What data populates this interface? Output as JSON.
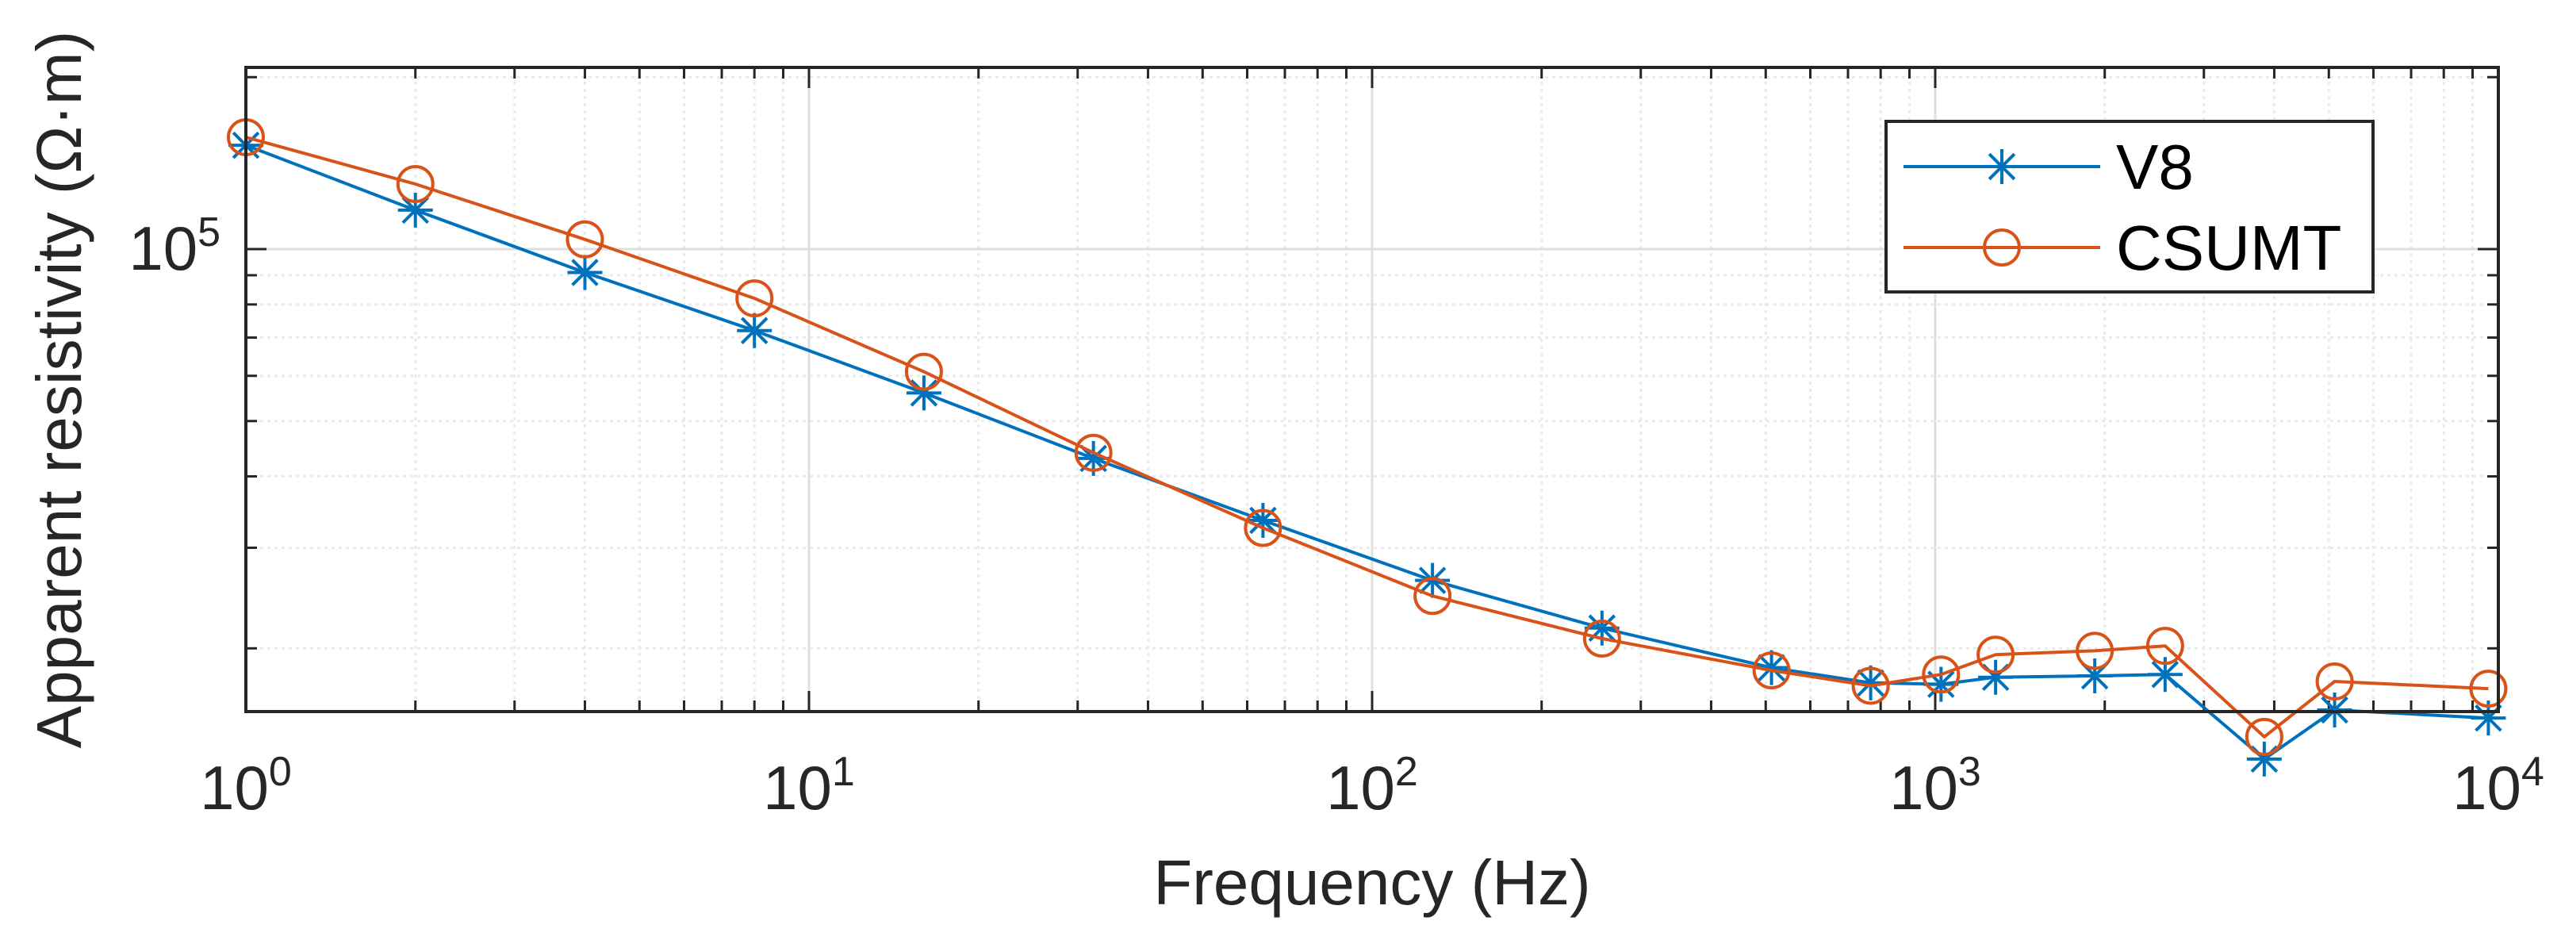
{
  "chart_data": {
    "type": "line",
    "title": "",
    "xlabel": "Frequency (Hz)",
    "ylabel": "Apparent resistivity (Ω·m)",
    "xscale": "log",
    "yscale": "log",
    "xlim": [
      1,
      10000
    ],
    "ylim": [
      15500,
      208000
    ],
    "grid": true,
    "minor_grid": true,
    "legend_position": "top-right",
    "x_ticks": [
      {
        "base": "10",
        "exp": "0",
        "value": 1
      },
      {
        "base": "10",
        "exp": "1",
        "value": 10
      },
      {
        "base": "10",
        "exp": "2",
        "value": 100
      },
      {
        "base": "10",
        "exp": "3",
        "value": 1000
      },
      {
        "base": "10",
        "exp": "4",
        "value": 10000
      }
    ],
    "y_ticks": [
      {
        "base": "10",
        "exp": "5",
        "value": 100000
      }
    ],
    "series": [
      {
        "name": "V8",
        "color": "#0072BD",
        "marker": "asterisk",
        "x": [
          1,
          2,
          4,
          8,
          16,
          32,
          64,
          128,
          256,
          512,
          768,
          1024,
          1280,
          1920,
          2560,
          3840,
          5120,
          9600
        ],
        "y": [
          152000,
          117000,
          91000,
          72000,
          56000,
          43000,
          33500,
          26300,
          21700,
          18500,
          17400,
          17300,
          17800,
          17900,
          18000,
          12800,
          15600,
          15100
        ]
      },
      {
        "name": "CSUMT",
        "color": "#D95319",
        "marker": "circle",
        "x": [
          1,
          2,
          4,
          8,
          16,
          32,
          64,
          128,
          256,
          512,
          768,
          1024,
          1280,
          1920,
          2560,
          3840,
          5120,
          9600
        ],
        "y": [
          157000,
          130000,
          104000,
          82000,
          61000,
          44000,
          32500,
          24700,
          20800,
          18300,
          17200,
          18000,
          19500,
          19800,
          20200,
          14000,
          17500,
          17000
        ]
      }
    ]
  },
  "colors": {
    "axis": "#262626",
    "grid": "#dfdfdf",
    "minor_grid": "#ebebeb",
    "background": "#ffffff"
  }
}
